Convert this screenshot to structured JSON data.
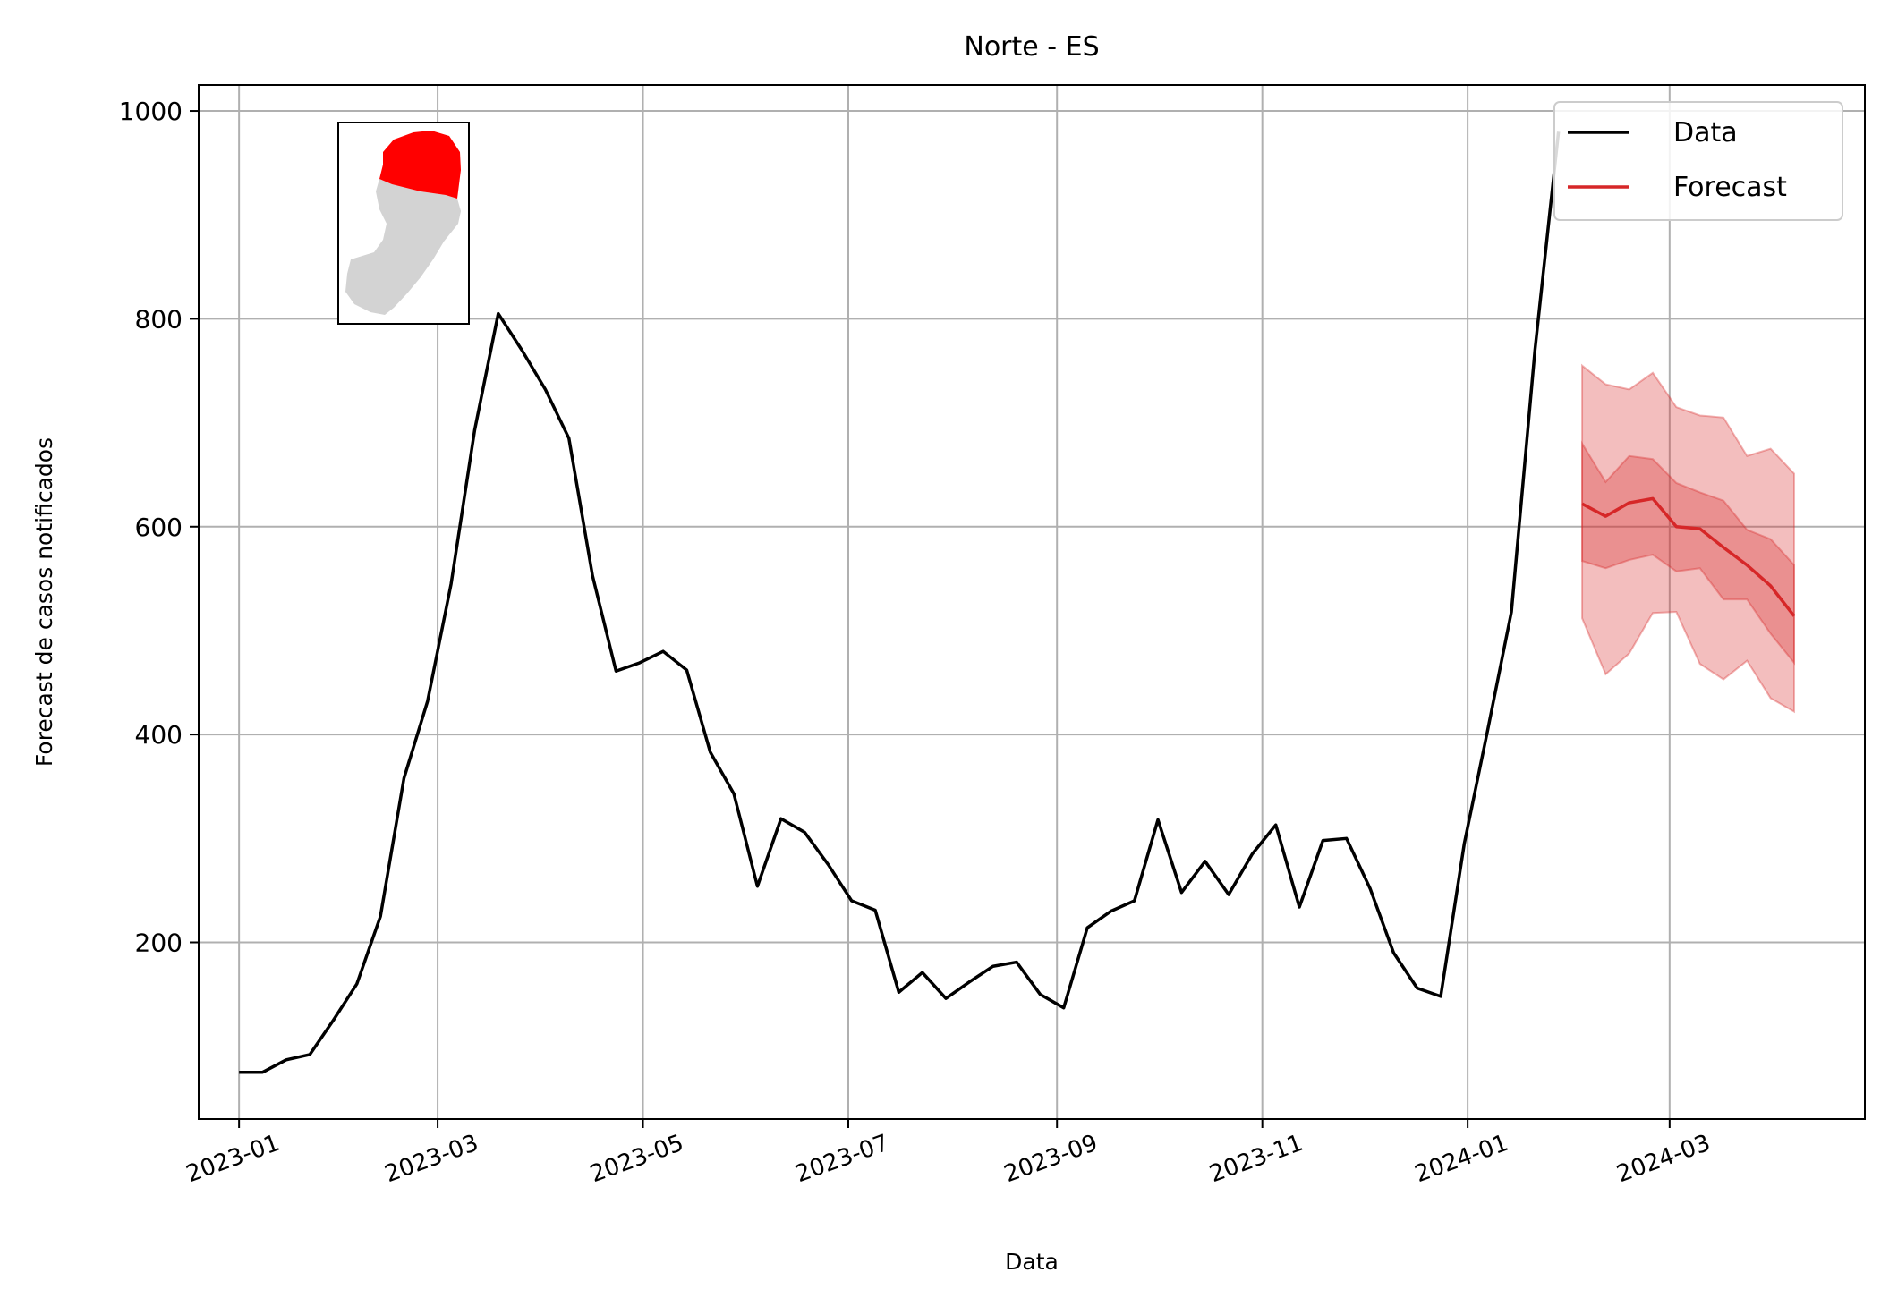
{
  "chart_data": {
    "type": "line",
    "title": "Norte - ES",
    "xlabel": "Data",
    "ylabel": "Forecast de casos notificados",
    "x_ticks": [
      "2023-01",
      "2023-03",
      "2023-05",
      "2023-07",
      "2023-09",
      "2023-11",
      "2024-01",
      "2024-03"
    ],
    "y_ticks": [
      200,
      400,
      600,
      800,
      1000
    ],
    "xlim": [
      "2022-12-20",
      "2024-04-28"
    ],
    "ylim": [
      30,
      1025
    ],
    "grid": true,
    "legend_position": "top-right",
    "series": [
      {
        "name": "Data",
        "color": "#000000",
        "points": [
          [
            "2023-01-01",
            75
          ],
          [
            "2023-01-08",
            75
          ],
          [
            "2023-01-15",
            87
          ],
          [
            "2023-01-22",
            92
          ],
          [
            "2023-01-29",
            125
          ],
          [
            "2023-02-05",
            160
          ],
          [
            "2023-02-12",
            225
          ],
          [
            "2023-02-19",
            358
          ],
          [
            "2023-02-26",
            432
          ],
          [
            "2023-03-05",
            545
          ],
          [
            "2023-03-12",
            693
          ],
          [
            "2023-03-19",
            805
          ],
          [
            "2023-03-26",
            770
          ],
          [
            "2023-04-02",
            732
          ],
          [
            "2023-04-09",
            685
          ],
          [
            "2023-04-16",
            553
          ],
          [
            "2023-04-23",
            461
          ],
          [
            "2023-04-30",
            469
          ],
          [
            "2023-05-07",
            480
          ],
          [
            "2023-05-14",
            462
          ],
          [
            "2023-05-21",
            383
          ],
          [
            "2023-05-28",
            343
          ],
          [
            "2023-06-04",
            254
          ],
          [
            "2023-06-11",
            319
          ],
          [
            "2023-06-18",
            306
          ],
          [
            "2023-06-25",
            275
          ],
          [
            "2023-07-02",
            240
          ],
          [
            "2023-07-09",
            231
          ],
          [
            "2023-07-16",
            152
          ],
          [
            "2023-07-23",
            171
          ],
          [
            "2023-07-30",
            146
          ],
          [
            "2023-08-06",
            162
          ],
          [
            "2023-08-13",
            177
          ],
          [
            "2023-08-20",
            181
          ],
          [
            "2023-08-27",
            150
          ],
          [
            "2023-09-03",
            137
          ],
          [
            "2023-09-10",
            214
          ],
          [
            "2023-09-17",
            230
          ],
          [
            "2023-09-24",
            240
          ],
          [
            "2023-10-01",
            318
          ],
          [
            "2023-10-08",
            248
          ],
          [
            "2023-10-15",
            278
          ],
          [
            "2023-10-22",
            246
          ],
          [
            "2023-10-29",
            285
          ],
          [
            "2023-11-05",
            313
          ],
          [
            "2023-11-12",
            234
          ],
          [
            "2023-11-19",
            298
          ],
          [
            "2023-11-26",
            300
          ],
          [
            "2023-12-03",
            252
          ],
          [
            "2023-12-10",
            190
          ],
          [
            "2023-12-17",
            156
          ],
          [
            "2023-12-24",
            148
          ],
          [
            "2023-12-31",
            295
          ],
          [
            "2024-01-07",
            405
          ],
          [
            "2024-01-14",
            518
          ],
          [
            "2024-01-21",
            770
          ],
          [
            "2024-01-28",
            980
          ]
        ]
      },
      {
        "name": "Forecast",
        "color": "#d62728",
        "x": [
          "2024-02-04",
          "2024-02-11",
          "2024-02-18",
          "2024-02-25",
          "2024-03-03",
          "2024-03-10",
          "2024-03-17",
          "2024-03-24",
          "2024-03-31",
          "2024-04-07"
        ],
        "median": [
          622,
          610,
          623,
          627,
          600,
          598,
          580,
          563,
          543,
          514
        ],
        "inner_lower": [
          567,
          560,
          568,
          573,
          557,
          560,
          530,
          530,
          497,
          469
        ],
        "inner_upper": [
          680,
          643,
          668,
          665,
          642,
          633,
          625,
          597,
          588,
          563
        ],
        "outer_lower": [
          512,
          458,
          478,
          517,
          518,
          468,
          453,
          471,
          435,
          422
        ],
        "outer_upper": [
          755,
          737,
          732,
          748,
          715,
          707,
          705,
          668,
          675,
          651
        ]
      }
    ],
    "inset_map": {
      "highlight_color": "#ff0000",
      "base_color": "#d3d3d3"
    }
  }
}
